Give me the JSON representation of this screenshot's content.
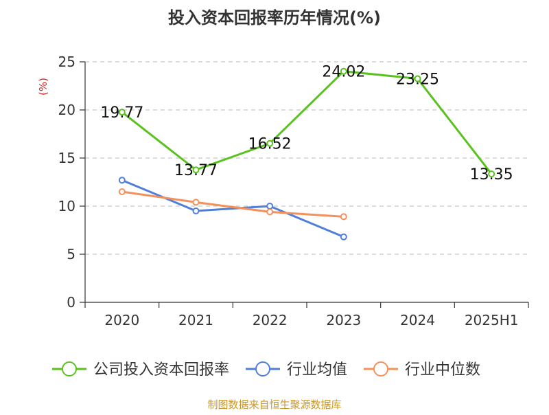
{
  "chart_data": {
    "type": "line",
    "title": "投入资本回报率历年情况(%)",
    "ylabel": "(%)",
    "xlabel": "",
    "categories": [
      "2020",
      "2021",
      "2022",
      "2023",
      "2024",
      "2025H1"
    ],
    "ylim": [
      0,
      25
    ],
    "yticks": [
      0,
      5,
      10,
      15,
      20,
      25
    ],
    "grid": true,
    "legend_position": "bottom",
    "series": [
      {
        "name": "公司投入资本回报率",
        "color": "#5ac21f",
        "values": [
          19.77,
          13.77,
          16.52,
          24.02,
          23.25,
          13.35
        ],
        "labels": [
          "19.77",
          "13.77",
          "16.52",
          "24.02",
          "23.25",
          "13.35"
        ]
      },
      {
        "name": "行业均值",
        "color": "#4f7fdb",
        "values": [
          12.7,
          9.5,
          10.0,
          6.8,
          null,
          null
        ]
      },
      {
        "name": "行业中位数",
        "color": "#f4905a",
        "values": [
          11.5,
          10.4,
          9.4,
          8.9,
          null,
          null
        ]
      }
    ],
    "source": "制图数据来自恒生聚源数据库"
  },
  "colors": {
    "ylabel": "#d21f1f",
    "source": "#c8962a",
    "axis": "#333333",
    "grid": "#c8c8c8",
    "text": "#333333"
  }
}
